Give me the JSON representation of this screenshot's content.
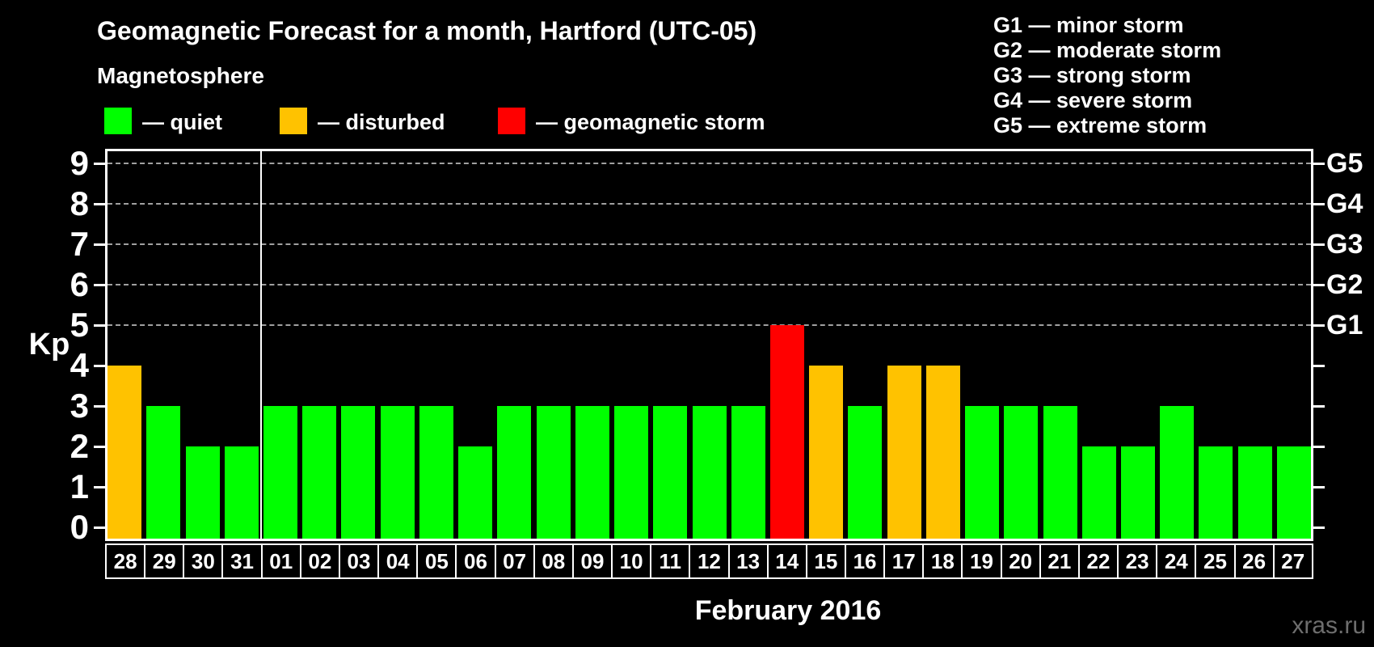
{
  "header": {
    "title": "Geomagnetic Forecast for a month, Hartford (UTC-05)",
    "subtitle": "Magnetosphere"
  },
  "legend": {
    "items": [
      {
        "label": "— quiet",
        "status": "quiet"
      },
      {
        "label": "— disturbed",
        "status": "disturbed"
      },
      {
        "label": "— geomagnetic storm",
        "status": "storm"
      }
    ]
  },
  "storm_scale_legend": {
    "lines": [
      "G1 — minor storm",
      "G2 — moderate storm",
      "G3 — strong storm",
      "G4 — severe storm",
      "G5 — extreme storm"
    ]
  },
  "chart_data": {
    "type": "bar",
    "title": "Geomagnetic Forecast for a month, Hartford (UTC-05)",
    "xlabel": "February 2016",
    "ylabel": "Kp",
    "ylim": [
      0,
      9
    ],
    "grid": "horizontal dashed lines at Kp 5-9",
    "gridlines_at": [
      5,
      6,
      7,
      8,
      9
    ],
    "legend_position": "top",
    "categories": [
      "28",
      "29",
      "30",
      "31",
      "01",
      "02",
      "03",
      "04",
      "05",
      "06",
      "07",
      "08",
      "09",
      "10",
      "11",
      "12",
      "13",
      "14",
      "15",
      "16",
      "17",
      "18",
      "19",
      "20",
      "21",
      "22",
      "23",
      "24",
      "25",
      "26",
      "27"
    ],
    "values": [
      4,
      3,
      2,
      2,
      3,
      3,
      3,
      3,
      3,
      2,
      3,
      3,
      3,
      3,
      3,
      3,
      3,
      5,
      4,
      3,
      4,
      4,
      3,
      3,
      3,
      2,
      2,
      3,
      2,
      2,
      2
    ],
    "statuses": [
      "disturbed",
      "quiet",
      "quiet",
      "quiet",
      "quiet",
      "quiet",
      "quiet",
      "quiet",
      "quiet",
      "quiet",
      "quiet",
      "quiet",
      "quiet",
      "quiet",
      "quiet",
      "quiet",
      "quiet",
      "storm",
      "disturbed",
      "quiet",
      "disturbed",
      "disturbed",
      "quiet",
      "quiet",
      "quiet",
      "quiet",
      "quiet",
      "quiet",
      "quiet",
      "quiet",
      "quiet"
    ],
    "separator_after_index": 3,
    "right_axis_labels": [
      {
        "label": "G1",
        "kp": 5
      },
      {
        "label": "G2",
        "kp": 6
      },
      {
        "label": "G3",
        "kp": 7
      },
      {
        "label": "G4",
        "kp": 8
      },
      {
        "label": "G5",
        "kp": 9
      }
    ],
    "colors": {
      "quiet": "#00FF00",
      "disturbed": "#FFC200",
      "storm": "#FF0000",
      "background": "#000000",
      "text": "#FFFFFF",
      "gridline": "#A0A0A0",
      "watermark": "#6E6E6E"
    }
  },
  "footer": {
    "month_label": "February 2016",
    "watermark": "xras.ru"
  }
}
